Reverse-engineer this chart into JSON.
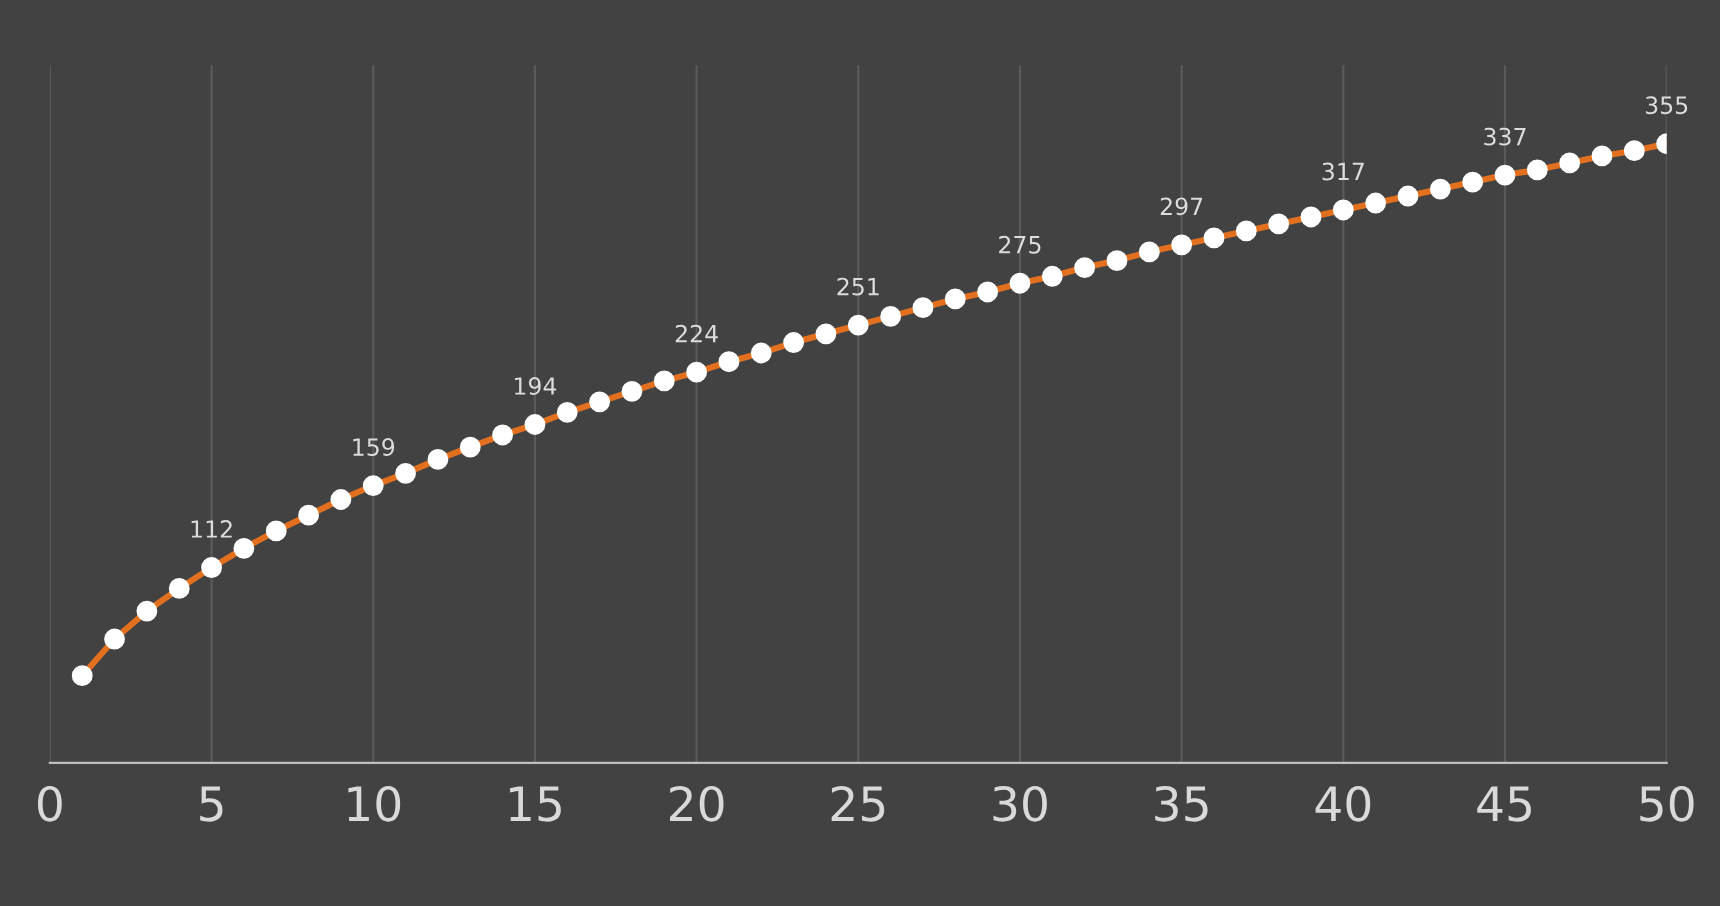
{
  "chart_data": {
    "type": "line",
    "x": [
      1,
      2,
      3,
      4,
      5,
      6,
      7,
      8,
      9,
      10,
      11,
      12,
      13,
      14,
      15,
      16,
      17,
      18,
      19,
      20,
      21,
      22,
      23,
      24,
      25,
      26,
      27,
      28,
      29,
      30,
      31,
      32,
      33,
      34,
      35,
      36,
      37,
      38,
      39,
      40,
      41,
      42,
      43,
      44,
      45,
      46,
      47,
      48,
      49,
      50
    ],
    "series": [
      {
        "color": "#e2701f",
        "values": [
          50,
          71,
          87,
          100,
          112,
          123,
          133,
          142,
          151,
          159,
          166,
          174,
          181,
          188,
          194,
          201,
          207,
          213,
          219,
          224,
          230,
          235,
          241,
          246,
          251,
          256,
          261,
          266,
          270,
          275,
          279,
          284,
          288,
          293,
          297,
          301,
          305,
          309,
          313,
          317,
          321,
          325,
          329,
          333,
          337,
          340,
          344,
          348,
          351,
          355
        ],
        "value_labels": [
          null,
          null,
          null,
          null,
          "112",
          null,
          null,
          null,
          null,
          "159",
          null,
          null,
          null,
          null,
          "194",
          null,
          null,
          null,
          null,
          "224",
          null,
          null,
          null,
          null,
          "251",
          null,
          null,
          null,
          null,
          "275",
          null,
          null,
          null,
          null,
          "297",
          null,
          null,
          null,
          null,
          "317",
          null,
          null,
          null,
          null,
          "337",
          null,
          null,
          null,
          null,
          "355"
        ]
      }
    ],
    "xlim": [
      0,
      50
    ],
    "xticks": [
      0,
      5,
      10,
      15,
      20,
      25,
      30,
      35,
      40,
      45,
      50
    ],
    "ylim": [
      0,
      400
    ],
    "tick_labels": "x",
    "grid": "x",
    "marker": "circle",
    "line_style": "solid",
    "legend": false
  }
}
